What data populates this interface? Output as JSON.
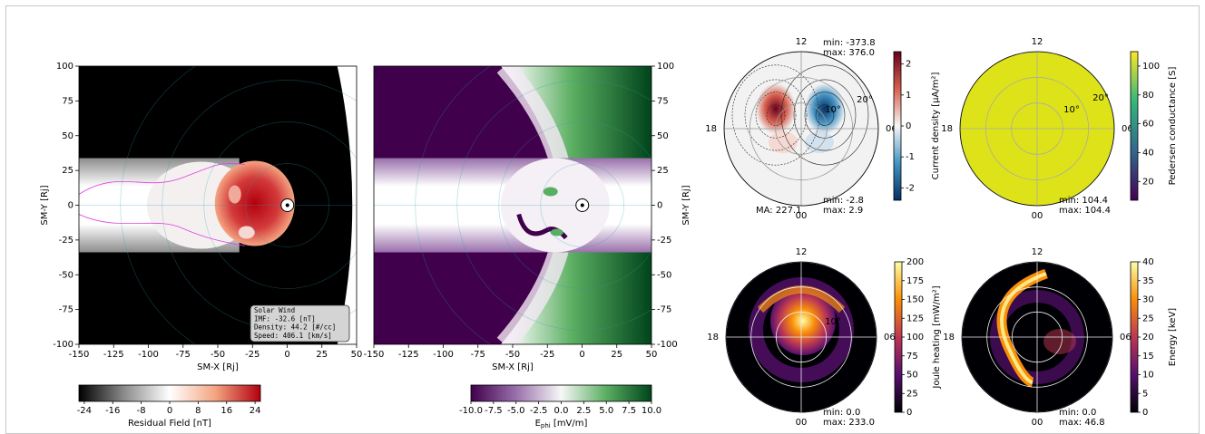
{
  "chart_data": [
    {
      "type": "heatmap",
      "xlabel": "SM-X [Rj]",
      "ylabel": "SM-Y [Rj]",
      "xlim": [
        -150,
        50
      ],
      "ylim": [
        -100,
        100
      ],
      "xticks": [
        -150,
        -125,
        -100,
        -75,
        -50,
        -25,
        0,
        25,
        50
      ],
      "yticks": [
        -100,
        -75,
        -50,
        -25,
        0,
        25,
        50,
        75,
        100
      ],
      "yaxis": "left",
      "colorbar": {
        "label": "Residual Field [nT]",
        "lim": [
          -25.5,
          25.5
        ],
        "ticks": [
          -24,
          -16,
          -8,
          0,
          8,
          16,
          24
        ],
        "colors": [
          "#000000",
          "#8c8c8c",
          "#ffffff",
          "#f4a582",
          "#b2000e"
        ]
      },
      "annotation": [
        "Solar Wind",
        "IMF: -32.6 [nT]",
        "Density:  44.2 [#/cc]",
        "Speed:   406.1 [km/s]"
      ]
    },
    {
      "type": "heatmap",
      "xlabel": "SM-X [Rj]",
      "ylabel": "SM-Y [Rj]",
      "xlim": [
        -150,
        50
      ],
      "ylim": [
        -100,
        100
      ],
      "xticks": [
        -150,
        -125,
        -100,
        -75,
        -50,
        -25,
        0,
        25,
        50
      ],
      "yticks": [
        -100,
        -75,
        -50,
        -25,
        0,
        25,
        50,
        75,
        100
      ],
      "yaxis": "right",
      "colorbar": {
        "label": "E",
        "label_sub": "phi",
        "label_unit": " [mV/m]",
        "lim": [
          -10,
          10
        ],
        "ticks": [
          {
            "value": -10,
            "label": "-10.0"
          },
          {
            "value": -7.5,
            "label": "-7.5"
          },
          {
            "value": -5,
            "label": "-5.0"
          },
          {
            "value": -2.5,
            "label": "-2.5"
          },
          {
            "value": 0,
            "label": "0.0"
          },
          {
            "value": 2.5,
            "label": "2.5"
          },
          {
            "value": 5,
            "label": "5.0"
          },
          {
            "value": 7.5,
            "label": "7.5"
          },
          {
            "value": 10,
            "label": "10.0"
          }
        ],
        "colors": [
          "#40004b",
          "#9970ab",
          "#f7f7f7",
          "#5aae61",
          "#00441b"
        ]
      }
    },
    {
      "type": "polar",
      "clock": [
        "12",
        "18",
        "06",
        "00"
      ],
      "lat_labels": [
        "20°",
        "10°"
      ],
      "stats": [
        "min: -373.8",
        "max: 376.0",
        "min: -2.8",
        "max: 2.9",
        "MA: 227.1"
      ],
      "colorbar": {
        "label": "Current density [μA/m²]",
        "lim": [
          -2.4,
          2.4
        ],
        "ticks": [
          -2,
          -1,
          0,
          1,
          2
        ],
        "colors": [
          "#053061",
          "#4393c3",
          "#f7f7f7",
          "#d6604d",
          "#67001f"
        ]
      }
    },
    {
      "type": "polar",
      "clock": [
        "12",
        "18",
        "06",
        "00"
      ],
      "lat_labels": [
        "20°",
        "10°"
      ],
      "stats": [
        "min: 104.4",
        "max: 104.4"
      ],
      "colorbar": {
        "label": "Pedersen conductance [S]",
        "lim": [
          7,
          110
        ],
        "ticks": [
          20,
          40,
          60,
          80,
          100
        ],
        "colors": [
          "#440154",
          "#31688e",
          "#35b779",
          "#fde725"
        ]
      }
    },
    {
      "type": "polar",
      "clock": [
        "12",
        "18",
        "06",
        "00"
      ],
      "lat_labels": [
        "10°"
      ],
      "stats": [
        "min: 0.0",
        "max: 233.0"
      ],
      "colorbar": {
        "label": "Joule heating [mW/m²]",
        "lim": [
          0,
          200
        ],
        "ticks": [
          0,
          25,
          50,
          75,
          100,
          125,
          150,
          175,
          200
        ],
        "colors": [
          "#000004",
          "#56106e",
          "#bb3754",
          "#f98e09",
          "#fcffa4"
        ]
      }
    },
    {
      "type": "polar",
      "clock": [
        "12",
        "18",
        "06",
        "00"
      ],
      "lat_labels": [],
      "stats": [
        "min: 0.0",
        "max: 46.8"
      ],
      "colorbar": {
        "label": "Energy [keV]",
        "lim": [
          0,
          40
        ],
        "ticks": [
          0,
          5,
          10,
          15,
          20,
          25,
          30,
          35,
          40
        ],
        "colors": [
          "#000004",
          "#56106e",
          "#bb3754",
          "#f98e09",
          "#fcffa4"
        ]
      }
    }
  ]
}
